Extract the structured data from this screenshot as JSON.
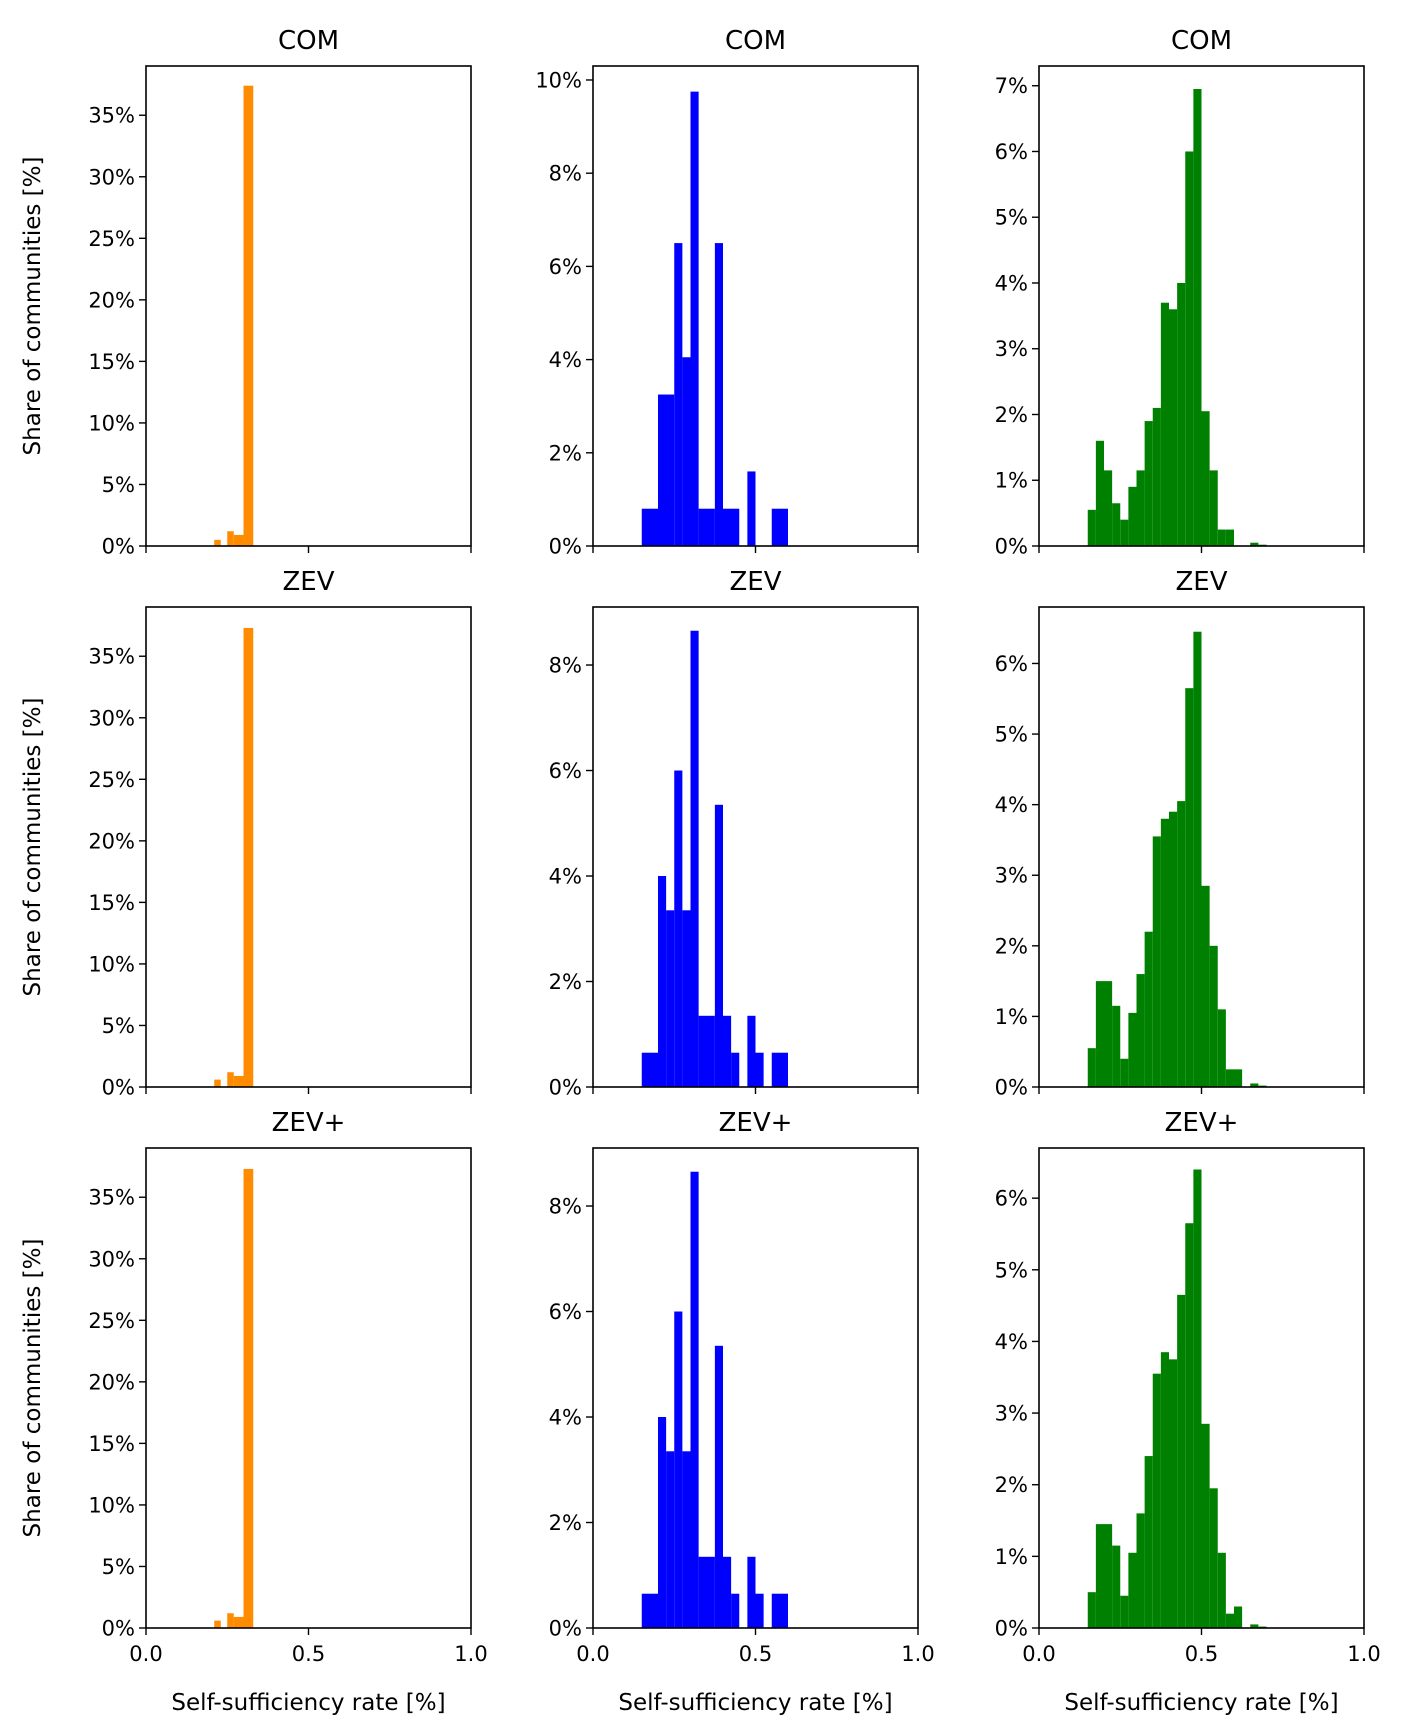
{
  "chart_data": {
    "type": "histogram",
    "layout": "3x3",
    "shared_x_label": "Self-sufficiency rate [%]",
    "shared_y_label": "Share of communities [%]",
    "xlim": [
      0,
      1
    ],
    "x_ticks": [
      "0.0",
      "0.5",
      "1.0"
    ],
    "colors": [
      "#ff8c00",
      "#0000ff",
      "#008000"
    ],
    "panels": [
      {
        "title": "COM",
        "row": 0,
        "col": 0,
        "color": "#ff8c00",
        "ylim": [
          0,
          39
        ],
        "y_ticks": [
          0,
          5,
          10,
          15,
          20,
          25,
          30,
          35
        ],
        "y_tick_labels": [
          "0%",
          "5%",
          "10%",
          "15%",
          "20%",
          "25%",
          "30%",
          "35%"
        ],
        "bins": [
          [
            0.21,
            0.23,
            0.5
          ],
          [
            0.25,
            0.27,
            1.2
          ],
          [
            0.27,
            0.3,
            0.9
          ],
          [
            0.3,
            0.33,
            37.4
          ]
        ]
      },
      {
        "title": "COM",
        "row": 0,
        "col": 1,
        "color": "#0000ff",
        "ylim": [
          0,
          10.3
        ],
        "y_ticks": [
          0,
          2,
          4,
          6,
          8,
          10
        ],
        "y_tick_labels": [
          "0%",
          "2%",
          "4%",
          "6%",
          "8%",
          "10%"
        ],
        "bins": [
          [
            0.15,
            0.2,
            0.8
          ],
          [
            0.2,
            0.25,
            3.25
          ],
          [
            0.25,
            0.275,
            6.5
          ],
          [
            0.275,
            0.3,
            4.05
          ],
          [
            0.3,
            0.325,
            9.75
          ],
          [
            0.325,
            0.375,
            0.8
          ],
          [
            0.375,
            0.4,
            6.5
          ],
          [
            0.4,
            0.45,
            0.8
          ],
          [
            0.475,
            0.5,
            1.6
          ],
          [
            0.55,
            0.6,
            0.8
          ]
        ]
      },
      {
        "title": "COM",
        "row": 0,
        "col": 2,
        "color": "#008000",
        "ylim": [
          0,
          7.3
        ],
        "y_ticks": [
          0,
          1,
          2,
          3,
          4,
          5,
          6,
          7
        ],
        "y_tick_labels": [
          "0%",
          "1%",
          "2%",
          "3%",
          "4%",
          "5%",
          "6%",
          "7%"
        ],
        "bins": [
          [
            0.15,
            0.175,
            0.55
          ],
          [
            0.175,
            0.2,
            1.6
          ],
          [
            0.2,
            0.225,
            1.15
          ],
          [
            0.225,
            0.25,
            0.65
          ],
          [
            0.25,
            0.275,
            0.4
          ],
          [
            0.275,
            0.3,
            0.9
          ],
          [
            0.3,
            0.325,
            1.15
          ],
          [
            0.325,
            0.35,
            1.9
          ],
          [
            0.35,
            0.375,
            2.1
          ],
          [
            0.375,
            0.4,
            3.7
          ],
          [
            0.4,
            0.425,
            3.6
          ],
          [
            0.425,
            0.45,
            4.0
          ],
          [
            0.45,
            0.475,
            6.0
          ],
          [
            0.475,
            0.5,
            6.95
          ],
          [
            0.5,
            0.525,
            2.05
          ],
          [
            0.525,
            0.55,
            1.15
          ],
          [
            0.55,
            0.575,
            0.25
          ],
          [
            0.575,
            0.6,
            0.25
          ],
          [
            0.65,
            0.675,
            0.05
          ],
          [
            0.675,
            0.7,
            0.02
          ]
        ]
      },
      {
        "title": "ZEV",
        "row": 1,
        "col": 0,
        "color": "#ff8c00",
        "ylim": [
          0,
          39
        ],
        "y_ticks": [
          0,
          5,
          10,
          15,
          20,
          25,
          30,
          35
        ],
        "y_tick_labels": [
          "0%",
          "5%",
          "10%",
          "15%",
          "20%",
          "25%",
          "30%",
          "35%"
        ],
        "bins": [
          [
            0.21,
            0.23,
            0.6
          ],
          [
            0.25,
            0.27,
            1.2
          ],
          [
            0.27,
            0.3,
            0.9
          ],
          [
            0.3,
            0.33,
            37.3
          ]
        ]
      },
      {
        "title": "ZEV",
        "row": 1,
        "col": 1,
        "color": "#0000ff",
        "ylim": [
          0,
          9.1
        ],
        "y_ticks": [
          0,
          2,
          4,
          6,
          8
        ],
        "y_tick_labels": [
          "0%",
          "2%",
          "4%",
          "6%",
          "8%"
        ],
        "bins": [
          [
            0.15,
            0.2,
            0.65
          ],
          [
            0.2,
            0.225,
            4.0
          ],
          [
            0.225,
            0.25,
            3.35
          ],
          [
            0.25,
            0.275,
            6.0
          ],
          [
            0.275,
            0.3,
            3.35
          ],
          [
            0.3,
            0.325,
            8.65
          ],
          [
            0.325,
            0.375,
            1.35
          ],
          [
            0.375,
            0.4,
            5.35
          ],
          [
            0.4,
            0.425,
            1.35
          ],
          [
            0.425,
            0.45,
            0.65
          ],
          [
            0.475,
            0.5,
            1.35
          ],
          [
            0.5,
            0.525,
            0.65
          ],
          [
            0.55,
            0.6,
            0.65
          ]
        ]
      },
      {
        "title": "ZEV",
        "row": 1,
        "col": 2,
        "color": "#008000",
        "ylim": [
          0,
          6.8
        ],
        "y_ticks": [
          0,
          1,
          2,
          3,
          4,
          5,
          6
        ],
        "y_tick_labels": [
          "0%",
          "1%",
          "2%",
          "3%",
          "4%",
          "5%",
          "6%"
        ],
        "bins": [
          [
            0.15,
            0.175,
            0.55
          ],
          [
            0.175,
            0.225,
            1.5
          ],
          [
            0.225,
            0.25,
            1.15
          ],
          [
            0.25,
            0.275,
            0.4
          ],
          [
            0.275,
            0.3,
            1.05
          ],
          [
            0.3,
            0.325,
            1.6
          ],
          [
            0.325,
            0.35,
            2.2
          ],
          [
            0.35,
            0.375,
            3.55
          ],
          [
            0.375,
            0.4,
            3.8
          ],
          [
            0.4,
            0.425,
            3.9
          ],
          [
            0.425,
            0.45,
            4.05
          ],
          [
            0.45,
            0.475,
            5.65
          ],
          [
            0.475,
            0.5,
            6.45
          ],
          [
            0.5,
            0.525,
            2.85
          ],
          [
            0.525,
            0.55,
            2.0
          ],
          [
            0.55,
            0.575,
            1.1
          ],
          [
            0.575,
            0.6,
            0.25
          ],
          [
            0.6,
            0.625,
            0.25
          ],
          [
            0.65,
            0.675,
            0.05
          ],
          [
            0.675,
            0.7,
            0.02
          ]
        ]
      },
      {
        "title": "ZEV+",
        "row": 2,
        "col": 0,
        "color": "#ff8c00",
        "ylim": [
          0,
          39
        ],
        "y_ticks": [
          0,
          5,
          10,
          15,
          20,
          25,
          30,
          35
        ],
        "y_tick_labels": [
          "0%",
          "5%",
          "10%",
          "15%",
          "20%",
          "25%",
          "30%",
          "35%"
        ],
        "bins": [
          [
            0.21,
            0.23,
            0.6
          ],
          [
            0.25,
            0.27,
            1.2
          ],
          [
            0.27,
            0.3,
            0.9
          ],
          [
            0.3,
            0.33,
            37.3
          ]
        ]
      },
      {
        "title": "ZEV+",
        "row": 2,
        "col": 1,
        "color": "#0000ff",
        "ylim": [
          0,
          9.1
        ],
        "y_ticks": [
          0,
          2,
          4,
          6,
          8
        ],
        "y_tick_labels": [
          "0%",
          "2%",
          "4%",
          "6%",
          "8%"
        ],
        "bins": [
          [
            0.15,
            0.2,
            0.65
          ],
          [
            0.2,
            0.225,
            4.0
          ],
          [
            0.225,
            0.25,
            3.35
          ],
          [
            0.25,
            0.275,
            6.0
          ],
          [
            0.275,
            0.3,
            3.35
          ],
          [
            0.3,
            0.325,
            8.65
          ],
          [
            0.325,
            0.375,
            1.35
          ],
          [
            0.375,
            0.4,
            5.35
          ],
          [
            0.4,
            0.425,
            1.35
          ],
          [
            0.425,
            0.45,
            0.65
          ],
          [
            0.475,
            0.5,
            1.35
          ],
          [
            0.5,
            0.525,
            0.65
          ],
          [
            0.55,
            0.6,
            0.65
          ]
        ]
      },
      {
        "title": "ZEV+",
        "row": 2,
        "col": 2,
        "color": "#008000",
        "ylim": [
          0,
          6.7
        ],
        "y_ticks": [
          0,
          1,
          2,
          3,
          4,
          5,
          6
        ],
        "y_tick_labels": [
          "0%",
          "1%",
          "2%",
          "3%",
          "4%",
          "5%",
          "6%"
        ],
        "bins": [
          [
            0.15,
            0.175,
            0.5
          ],
          [
            0.175,
            0.225,
            1.45
          ],
          [
            0.225,
            0.25,
            1.15
          ],
          [
            0.25,
            0.275,
            0.45
          ],
          [
            0.275,
            0.3,
            1.05
          ],
          [
            0.3,
            0.325,
            1.6
          ],
          [
            0.325,
            0.35,
            2.4
          ],
          [
            0.35,
            0.375,
            3.55
          ],
          [
            0.375,
            0.4,
            3.85
          ],
          [
            0.4,
            0.425,
            3.75
          ],
          [
            0.425,
            0.45,
            4.65
          ],
          [
            0.45,
            0.475,
            5.65
          ],
          [
            0.475,
            0.5,
            6.4
          ],
          [
            0.5,
            0.525,
            2.85
          ],
          [
            0.525,
            0.55,
            1.95
          ],
          [
            0.55,
            0.575,
            1.05
          ],
          [
            0.575,
            0.6,
            0.2
          ],
          [
            0.6,
            0.625,
            0.3
          ],
          [
            0.65,
            0.675,
            0.05
          ],
          [
            0.675,
            0.7,
            0.02
          ]
        ]
      }
    ]
  }
}
